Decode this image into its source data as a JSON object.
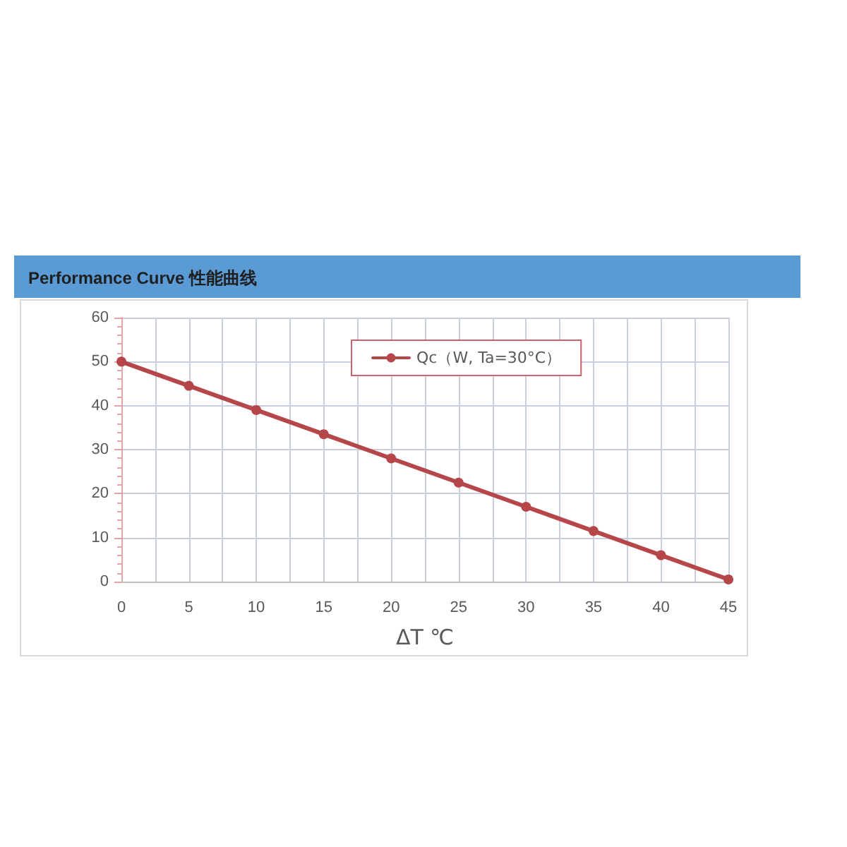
{
  "chart_data": {
    "type": "line",
    "title": "Performance Curve 性能曲线",
    "xlabel": "ΔT ℃",
    "x": [
      0,
      5,
      10,
      15,
      20,
      25,
      30,
      35,
      40,
      45
    ],
    "series": [
      {
        "name": "Qc（W, Ta=30°C）",
        "color": "#b5474b",
        "values": [
          50,
          44.5,
          39,
          33.5,
          28,
          22.5,
          17,
          11.5,
          6,
          0.5
        ]
      }
    ],
    "xlim": [
      0,
      45
    ],
    "xticks": [
      0,
      {
        "value": 2.5,
        "label": null
      },
      5,
      {
        "value": 7.5,
        "label": null
      },
      10,
      {
        "value": 12.5,
        "label": null
      },
      15,
      {
        "value": 17.5,
        "label": null
      },
      20,
      {
        "value": 22.5,
        "label": null
      },
      25,
      {
        "value": 27.5,
        "label": null
      },
      30,
      {
        "value": 32.5,
        "label": null
      },
      35,
      {
        "value": 37.5,
        "label": null
      },
      40,
      {
        "value": 42.5,
        "label": null
      },
      45
    ],
    "ylim": [
      0,
      60
    ],
    "yticks": [
      0,
      10,
      20,
      30,
      40,
      50,
      60
    ],
    "grid": true,
    "legend": "top",
    "marker": "circle",
    "line_style": "solid"
  }
}
